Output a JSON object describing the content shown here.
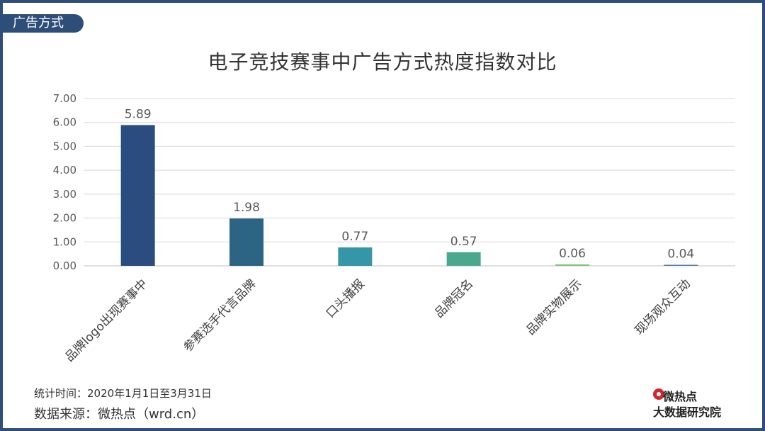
{
  "tag": "广告方式",
  "footer": {
    "period": "统计时间：2020年1月1日至3月31日",
    "source": "数据来源：微热点（wrd.cn）"
  },
  "logo": {
    "line1": "微热点",
    "line2": "大数据研究院"
  },
  "chart_data": {
    "type": "bar",
    "title": "电子竞技赛事中广告方式热度指数对比",
    "categories": [
      "品牌logo出现赛事中",
      "参赛选手代言品牌",
      "口头播报",
      "品牌冠名",
      "品牌实物展示",
      "现场观众互动"
    ],
    "values": [
      5.89,
      1.98,
      0.77,
      0.57,
      0.06,
      0.04
    ],
    "value_labels": [
      "5.89",
      "1.98",
      "0.77",
      "0.57",
      "0.06",
      "0.04"
    ],
    "yticks": [
      "0.00",
      "1.00",
      "2.00",
      "3.00",
      "4.00",
      "5.00",
      "6.00",
      "7.00"
    ],
    "ylim": [
      0,
      7
    ],
    "bar_colors": [
      "#2b4c7e",
      "#2c6583",
      "#3596a8",
      "#4aa88e",
      "#7cc47a",
      "#5a7fa8"
    ],
    "grid": true,
    "xlabel": "",
    "ylabel": ""
  }
}
